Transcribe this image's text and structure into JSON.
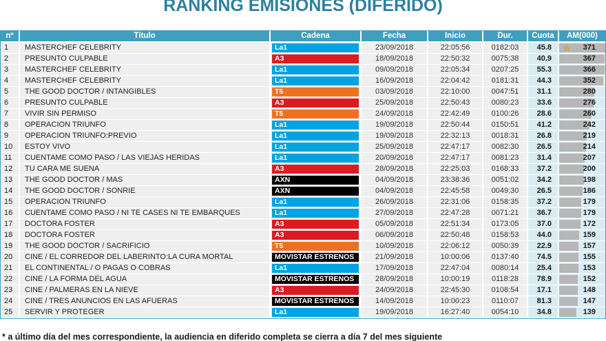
{
  "title": "RANKING EMISIONES (DIFERIDO)",
  "footnote": "* a último día del mes correspondiente, la audiencia en diferido completa se cierra a día 7 del mes siguiente",
  "colors": {
    "title": "#2e7f9e",
    "header_bg": "#3f9fbf",
    "row_bg": "#efefef",
    "highlight_bg": "#d9ecf4",
    "bar": "#b7b7b7",
    "star": "#e0ac3a"
  },
  "channel_colors": {
    "La1": "#00a3e1",
    "A3": "#dd1a22",
    "T5": "#ec7222",
    "AXN": "#000000",
    "MOVISTAR ESTRENOS": "#000000"
  },
  "icons": {
    "star": "★"
  },
  "chart_data": {
    "type": "table",
    "title": "RANKING EMISIONES (DIFERIDO)",
    "columns": [
      "nº",
      "Título",
      "Cadena",
      "Fecha",
      "Inicio",
      "Dur.",
      "Cuota",
      "AM(000)"
    ],
    "am_bar_max": 371,
    "starred_row": 1,
    "rows": [
      [
        1,
        "MASTERCHEF CELEBRITY",
        "La1",
        "23/09/2018",
        "22:05:56",
        "0182:03",
        "45.8",
        371
      ],
      [
        2,
        "PRESUNTO CULPABLE",
        "A3",
        "18/09/2018",
        "22:50:32",
        "0075:38",
        "40.9",
        367
      ],
      [
        3,
        "MASTERCHEF CELEBRITY",
        "La1",
        "09/09/2018",
        "22:05:34",
        "0207:25",
        "55.3",
        366
      ],
      [
        4,
        "MASTERCHEF CELEBRITY",
        "La1",
        "16/09/2018",
        "22:04:42",
        "0181:31",
        "44.3",
        352
      ],
      [
        5,
        "THE GOOD DOCTOR / INTANGIBLES",
        "T5",
        "03/09/2018",
        "22:10:00",
        "0047:51",
        "31.1",
        280
      ],
      [
        6,
        "PRESUNTO CULPABLE",
        "A3",
        "25/09/2018",
        "22:50:43",
        "0080:23",
        "33.6",
        276
      ],
      [
        7,
        "VIVIR SIN PERMISO",
        "T5",
        "24/09/2018",
        "22:42:49",
        "0100:26",
        "28.6",
        260
      ],
      [
        8,
        "OPERACION TRIUNFO",
        "La1",
        "19/09/2018",
        "22:50:44",
        "0150:51",
        "41.2",
        242
      ],
      [
        9,
        "OPERACION TRIUNFO:PREVIO",
        "La1",
        "19/09/2018",
        "22:32:13",
        "0018:31",
        "26.8",
        219
      ],
      [
        10,
        "ESTOY VIVO",
        "La1",
        "25/09/2018",
        "22:47:17",
        "0082:30",
        "26.5",
        214
      ],
      [
        11,
        "CUENTAME COMO PASO / LAS VIEJAS HERIDAS",
        "La1",
        "20/09/2018",
        "22:47:17",
        "0081:23",
        "31.4",
        207
      ],
      [
        12,
        "TU CARA ME SUENA",
        "A3",
        "28/09/2018",
        "22:25:03",
        "0168:33",
        "37.2",
        200
      ],
      [
        13,
        "THE GOOD DOCTOR / MAS",
        "AXN",
        "04/09/2018",
        "23:38:36",
        "0051:02",
        "34.2",
        198
      ],
      [
        14,
        "THE GOOD DOCTOR / SONRIE",
        "AXN",
        "04/09/2018",
        "22:45:58",
        "0049:30",
        "26.5",
        186
      ],
      [
        15,
        "OPERACION TRIUNFO",
        "La1",
        "26/09/2018",
        "22:31:06",
        "0158:35",
        "37.2",
        179
      ],
      [
        16,
        "CUENTAME COMO PASO / NI TE CASES NI TE EMBARQUES",
        "La1",
        "27/09/2018",
        "22:47:28",
        "0071:21",
        "36.7",
        179
      ],
      [
        17,
        "DOCTORA FOSTER",
        "A3",
        "05/09/2018",
        "22:51:34",
        "0173:05",
        "37.0",
        172
      ],
      [
        18,
        "DOCTORA FOSTER",
        "A3",
        "06/09/2018",
        "22:50:48",
        "0158:53",
        "44.0",
        159
      ],
      [
        19,
        "THE GOOD DOCTOR / SACRIFICIO",
        "T5",
        "10/09/2018",
        "22:06:12",
        "0050:39",
        "22.9",
        157
      ],
      [
        20,
        "CINE / EL CORREDOR DEL LABERINTO:LA CURA MORTAL",
        "MOVISTAR ESTRENOS",
        "21/09/2018",
        "10:00:06",
        "0137:40",
        "74.5",
        155
      ],
      [
        21,
        "EL CONTINENTAL / O PAGAS O COBRAS",
        "La1",
        "17/09/2018",
        "22:47:04",
        "0080:14",
        "25.4",
        153
      ],
      [
        22,
        "CINE / LA FORMA DEL AGUA",
        "MOVISTAR ESTRENOS",
        "28/09/2018",
        "10:00:19",
        "0118:28",
        "78.9",
        152
      ],
      [
        23,
        "CINE / PALMERAS EN LA NIEVE",
        "A3",
        "24/09/2018",
        "22:45:30",
        "0108:54",
        "17.1",
        148
      ],
      [
        24,
        "CINE / TRES ANUNCIOS EN LAS AFUERAS",
        "MOVISTAR ESTRENOS",
        "14/09/2018",
        "10:00:23",
        "0110:07",
        "81.3",
        147
      ],
      [
        25,
        "SERVIR Y PROTEGER",
        "La1",
        "19/09/2018",
        "16:27:40",
        "0054:10",
        "34.8",
        139
      ]
    ]
  }
}
